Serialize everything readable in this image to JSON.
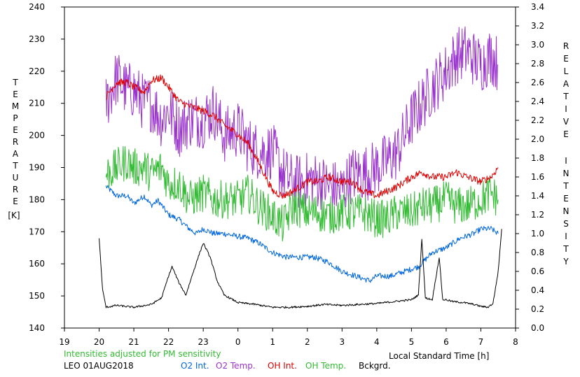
{
  "chart_data": {
    "type": "line",
    "xlabel": "Local Standard Time [h]",
    "left_axis": {
      "label_letters": [
        "T",
        "E",
        "M",
        "P",
        "E",
        "R",
        "A",
        "T",
        "U",
        "R",
        "E"
      ],
      "unit": "[K]",
      "ylim": [
        140,
        240
      ],
      "ticks": [
        "140",
        "150",
        "160",
        "170",
        "180",
        "190",
        "200",
        "210",
        "220",
        "230",
        "240"
      ]
    },
    "right_axis": {
      "label_words": [
        [
          "R",
          "E",
          "L",
          "A",
          "T",
          "I",
          "V",
          "E"
        ],
        [
          "I",
          "N",
          "T",
          "E",
          "N",
          "S",
          "I",
          "T",
          "Y"
        ]
      ],
      "ylim": [
        0.0,
        3.4
      ],
      "ticks": [
        "0.0",
        "0.2",
        "0.4",
        "0.6",
        "0.8",
        "1.0",
        "1.2",
        "1.4",
        "1.6",
        "1.8",
        "2.0",
        "2.2",
        "2.4",
        "2.6",
        "2.8",
        "3.0",
        "3.2",
        "3.4"
      ]
    },
    "x_axis": {
      "xlim": [
        19,
        32
      ],
      "tick_positions": [
        19,
        20,
        21,
        22,
        23,
        24,
        25,
        26,
        27,
        28,
        29,
        30,
        31,
        32
      ],
      "tick_labels": [
        "19",
        "20",
        "21",
        "22",
        "23",
        "0",
        "1",
        "2",
        "3",
        "4",
        "5",
        "6",
        "7",
        "8"
      ]
    },
    "note": "Intensities adjusted for PM sensitivity",
    "station": "LEO 01AUG2018",
    "grid": false,
    "legend_position": "bottom",
    "series": [
      {
        "name": "O2 Int.",
        "axis": "right",
        "color": "#0066dd",
        "x": [
          20.2,
          20.5,
          20.8,
          21.0,
          21.3,
          21.5,
          21.7,
          22.0,
          22.3,
          22.6,
          22.8,
          23.0,
          23.3,
          23.6,
          24.0,
          24.3,
          24.6,
          25.0,
          25.4,
          25.8,
          26.2,
          26.6,
          27.0,
          27.4,
          27.8,
          28.0,
          28.4,
          28.8,
          29.2,
          29.6,
          30.0,
          30.4,
          30.8,
          31.0,
          31.3,
          31.5
        ],
        "y": [
          1.5,
          1.4,
          1.4,
          1.32,
          1.4,
          1.3,
          1.35,
          1.2,
          1.15,
          1.05,
          1.0,
          1.05,
          1.0,
          1.0,
          0.97,
          0.95,
          0.9,
          0.8,
          0.75,
          0.75,
          0.75,
          0.7,
          0.6,
          0.55,
          0.5,
          0.55,
          0.55,
          0.6,
          0.65,
          0.8,
          0.85,
          0.95,
          1.0,
          1.05,
          1.05,
          1.0
        ],
        "jitter": 0.03
      },
      {
        "name": "O2 Temp.",
        "axis": "left",
        "color": "#9933cc",
        "x": [
          20.2,
          20.5,
          20.8,
          21.0,
          21.3,
          21.5,
          21.8,
          22.0,
          22.3,
          22.6,
          23.0,
          23.3,
          23.6,
          24.0,
          24.3,
          24.6,
          25.0,
          25.3,
          25.6,
          26.0,
          26.3,
          26.6,
          27.0,
          27.3,
          27.6,
          28.0,
          28.3,
          28.6,
          29.0,
          29.3,
          29.6,
          30.0,
          30.3,
          30.6,
          31.0,
          31.3,
          31.5
        ],
        "y": [
          210,
          218,
          214,
          214,
          210,
          210,
          205,
          208,
          202,
          205,
          205,
          208,
          200,
          202,
          197,
          195,
          195,
          188,
          185,
          186,
          186,
          184,
          183,
          188,
          188,
          190,
          192,
          195,
          205,
          210,
          215,
          220,
          225,
          226,
          222,
          225,
          222
        ],
        "jitter": 9
      },
      {
        "name": "OH Int.",
        "axis": "right",
        "color": "#dd0000",
        "x": [
          20.2,
          20.5,
          20.8,
          21.0,
          21.3,
          21.5,
          21.8,
          22.0,
          22.3,
          22.6,
          23.0,
          23.3,
          23.6,
          24.0,
          24.3,
          24.6,
          25.0,
          25.3,
          25.6,
          26.0,
          26.3,
          26.6,
          27.0,
          27.3,
          27.6,
          28.0,
          28.3,
          28.6,
          29.0,
          29.3,
          29.6,
          30.0,
          30.3,
          30.6,
          31.0,
          31.3,
          31.5
        ],
        "y": [
          2.45,
          2.6,
          2.6,
          2.55,
          2.5,
          2.62,
          2.65,
          2.55,
          2.4,
          2.35,
          2.3,
          2.25,
          2.15,
          2.05,
          1.95,
          1.75,
          1.45,
          1.4,
          1.45,
          1.55,
          1.55,
          1.6,
          1.55,
          1.55,
          1.45,
          1.4,
          1.45,
          1.5,
          1.6,
          1.65,
          1.6,
          1.6,
          1.65,
          1.6,
          1.55,
          1.6,
          1.7
        ],
        "jitter": 0.04
      },
      {
        "name": "OH Temp.",
        "axis": "left",
        "color": "#33bb33",
        "x": [
          20.2,
          20.5,
          20.8,
          21.0,
          21.3,
          21.5,
          21.8,
          22.0,
          22.3,
          22.6,
          23.0,
          23.3,
          23.6,
          24.0,
          24.3,
          24.6,
          25.0,
          25.3,
          25.6,
          26.0,
          26.3,
          26.6,
          27.0,
          27.3,
          27.6,
          28.0,
          28.3,
          28.6,
          29.0,
          29.3,
          29.6,
          30.0,
          30.3,
          30.6,
          31.0,
          31.3,
          31.5
        ],
        "y": [
          188,
          190,
          192,
          190,
          190,
          188,
          190,
          185,
          185,
          180,
          182,
          180,
          180,
          180,
          182,
          178,
          175,
          172,
          178,
          176,
          176,
          175,
          176,
          176,
          176,
          174,
          174,
          176,
          176,
          178,
          178,
          180,
          178,
          178,
          180,
          182,
          180
        ],
        "jitter": 6
      },
      {
        "name": "Bckgrd.",
        "axis": "right",
        "color": "#000000",
        "x": [
          20.0,
          20.1,
          20.2,
          20.5,
          21.0,
          21.5,
          21.8,
          22.0,
          22.1,
          22.3,
          22.5,
          22.7,
          22.9,
          23.0,
          23.2,
          23.4,
          23.6,
          24.0,
          24.5,
          25.0,
          25.5,
          26.0,
          26.5,
          27.0,
          27.5,
          28.0,
          28.5,
          29.0,
          29.2,
          29.3,
          29.4,
          29.6,
          29.8,
          29.9,
          30.0,
          30.2,
          30.5,
          30.8,
          31.0,
          31.2,
          31.35,
          31.5,
          31.6
        ],
        "y": [
          0.95,
          0.4,
          0.22,
          0.24,
          0.22,
          0.25,
          0.32,
          0.55,
          0.65,
          0.48,
          0.35,
          0.58,
          0.8,
          0.9,
          0.75,
          0.5,
          0.35,
          0.27,
          0.25,
          0.22,
          0.22,
          0.23,
          0.25,
          0.24,
          0.25,
          0.26,
          0.28,
          0.3,
          0.35,
          0.95,
          0.32,
          0.3,
          0.75,
          0.3,
          0.3,
          0.28,
          0.27,
          0.25,
          0.23,
          0.22,
          0.26,
          0.6,
          1.05
        ],
        "jitter": 0.01
      }
    ]
  }
}
